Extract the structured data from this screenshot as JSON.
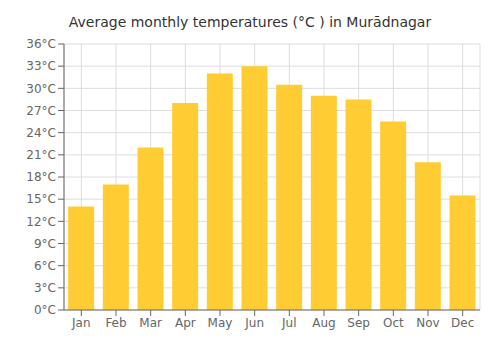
{
  "chart_data": {
    "type": "bar",
    "title": "Average monthly temperatures (°C ) in Murādnagar",
    "categories": [
      "Jan",
      "Feb",
      "Mar",
      "Apr",
      "May",
      "Jun",
      "Jul",
      "Aug",
      "Sep",
      "Oct",
      "Nov",
      "Dec"
    ],
    "values": [
      14,
      17,
      22,
      28,
      32,
      33,
      30.5,
      29,
      28.5,
      25.5,
      20,
      15.5
    ],
    "color": "#FFCC33",
    "ylim": [
      0,
      36
    ],
    "yticks": [
      {
        "value": 0,
        "label": "0°C"
      },
      {
        "value": 3,
        "label": "3°C"
      },
      {
        "value": 6,
        "label": "6°C"
      },
      {
        "value": 9,
        "label": "9°C"
      },
      {
        "value": 12,
        "label": "12°C"
      },
      {
        "value": 15,
        "label": "15°C"
      },
      {
        "value": 18,
        "label": "18°C"
      },
      {
        "value": 21,
        "label": "21°C"
      },
      {
        "value": 24,
        "label": "24°C"
      },
      {
        "value": 27,
        "label": "27°C"
      },
      {
        "value": 30,
        "label": "30°C"
      },
      {
        "value": 33,
        "label": "33°C"
      },
      {
        "value": 36,
        "label": "36°C"
      }
    ],
    "grid": true
  }
}
